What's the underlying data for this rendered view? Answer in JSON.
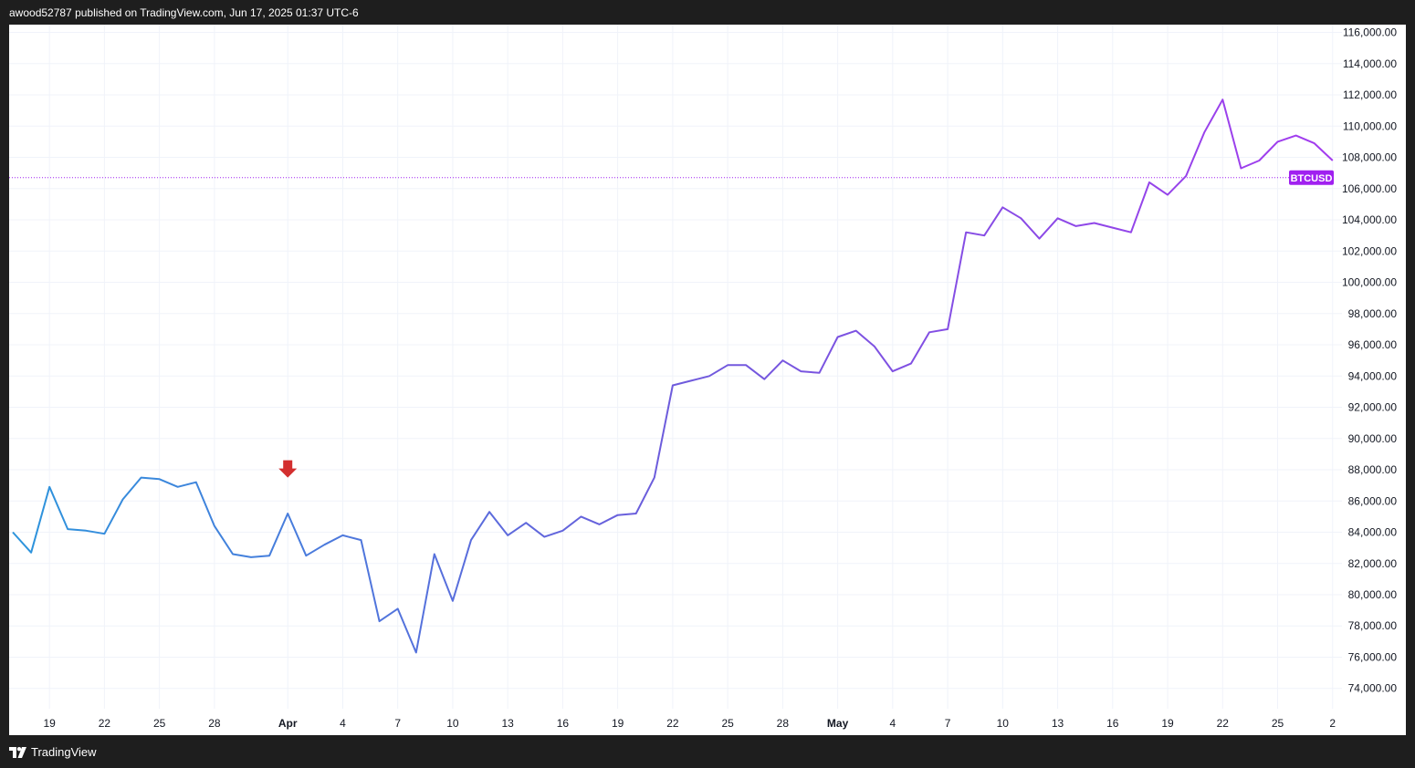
{
  "header": {
    "published_text": "awood52787 published on TradingView.com, Jun 17, 2025 01:37 UTC-6"
  },
  "footer": {
    "brand": "TradingView"
  },
  "colors": {
    "line_start": "#2c95dc",
    "line_mid": "#6e5bdc",
    "line_end": "#a43bef",
    "badge": "#a020f0",
    "arrow": "#d32f2f",
    "grid": "#f0f3fa"
  },
  "chart_data": {
    "type": "line",
    "symbol_label": "BTCUSD",
    "last_price_line": 106700,
    "ylim": [
      72700,
      116500
    ],
    "y_ticks": [
      74000,
      76000,
      78000,
      80000,
      82000,
      84000,
      86000,
      88000,
      90000,
      92000,
      94000,
      96000,
      98000,
      100000,
      102000,
      104000,
      106000,
      108000,
      110000,
      112000,
      114000,
      116000
    ],
    "y_tick_labels": [
      "74,000.00",
      "76,000.00",
      "78,000.00",
      "80,000.00",
      "82,000.00",
      "84,000.00",
      "86,000.00",
      "88,000.00",
      "90,000.00",
      "92,000.00",
      "94,000.00",
      "96,000.00",
      "98,000.00",
      "100,000.00",
      "102,000.00",
      "104,000.00",
      "106,000.00",
      "108,000.00",
      "110,000.00",
      "112,000.00",
      "114,000.00",
      "116,000.00"
    ],
    "x_ticks": [
      {
        "label": "19",
        "index": 2,
        "bold": false
      },
      {
        "label": "22",
        "index": 5,
        "bold": false
      },
      {
        "label": "25",
        "index": 8,
        "bold": false
      },
      {
        "label": "28",
        "index": 11,
        "bold": false
      },
      {
        "label": "Apr",
        "index": 15,
        "bold": true
      },
      {
        "label": "4",
        "index": 18,
        "bold": false
      },
      {
        "label": "7",
        "index": 21,
        "bold": false
      },
      {
        "label": "10",
        "index": 24,
        "bold": false
      },
      {
        "label": "13",
        "index": 27,
        "bold": false
      },
      {
        "label": "16",
        "index": 30,
        "bold": false
      },
      {
        "label": "19",
        "index": 33,
        "bold": false
      },
      {
        "label": "22",
        "index": 36,
        "bold": false
      },
      {
        "label": "25",
        "index": 39,
        "bold": false
      },
      {
        "label": "28",
        "index": 42,
        "bold": false
      },
      {
        "label": "May",
        "index": 45,
        "bold": true
      },
      {
        "label": "4",
        "index": 48,
        "bold": false
      },
      {
        "label": "7",
        "index": 51,
        "bold": false
      },
      {
        "label": "10",
        "index": 54,
        "bold": false
      },
      {
        "label": "13",
        "index": 57,
        "bold": false
      },
      {
        "label": "16",
        "index": 60,
        "bold": false
      },
      {
        "label": "19",
        "index": 63,
        "bold": false
      },
      {
        "label": "22",
        "index": 66,
        "bold": false
      },
      {
        "label": "25",
        "index": 69,
        "bold": false
      },
      {
        "label": "2",
        "index": 72,
        "bold": false
      }
    ],
    "marker": {
      "type": "arrow-down",
      "index": 15,
      "value": 87500
    },
    "series": [
      {
        "values": [
          84000,
          82700,
          86900,
          84200,
          84100,
          83900,
          86100,
          87500,
          87400,
          86900,
          87200,
          84400,
          82600,
          82400,
          82500,
          85200,
          82500,
          83200,
          83800,
          83500,
          78300,
          79100,
          76300,
          82600,
          79600,
          83500,
          85300,
          83800,
          84600,
          83700,
          84100,
          85000,
          84500,
          85100,
          85200,
          87500,
          93400,
          93700,
          94000,
          94700,
          94700,
          93800,
          95000,
          94300,
          94200,
          96500,
          96900,
          95900,
          94300,
          94800,
          96800,
          97000,
          103200,
          103000,
          104800,
          104100,
          102800,
          104100,
          103600,
          103800,
          103500,
          103200,
          106400,
          105600,
          106800,
          109600,
          111700,
          107300,
          107800,
          109000,
          109400,
          108900,
          107800
        ]
      }
    ]
  }
}
